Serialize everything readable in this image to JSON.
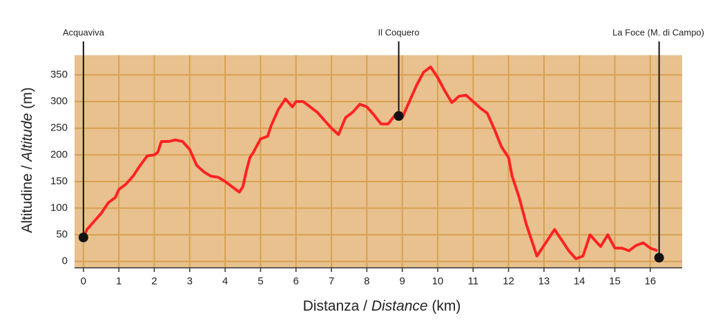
{
  "chart_data": {
    "type": "line",
    "x_label_parts": [
      "Distanza / ",
      "Distance",
      " (km)"
    ],
    "y_label_parts": [
      "Altitudine / ",
      "Altitude",
      " (m)"
    ],
    "xlim": [
      -0.25,
      16.9
    ],
    "ylim": [
      -12,
      387
    ],
    "xticks": [
      0,
      1,
      2,
      3,
      4,
      5,
      6,
      7,
      8,
      9,
      10,
      11,
      12,
      13,
      14,
      15,
      16
    ],
    "yticks": [
      0,
      50,
      100,
      150,
      200,
      250,
      300,
      350
    ],
    "grid": true,
    "background_color": "#e8c18e",
    "grid_color": "#d9a050",
    "x": [
      0,
      0.1,
      0.3,
      0.5,
      0.7,
      0.9,
      1.0,
      1.2,
      1.4,
      1.6,
      1.8,
      2.0,
      2.1,
      2.2,
      2.4,
      2.6,
      2.8,
      3.0,
      3.1,
      3.2,
      3.4,
      3.6,
      3.8,
      4.0,
      4.2,
      4.4,
      4.5,
      4.6,
      4.7,
      4.8,
      5.0,
      5.2,
      5.3,
      5.5,
      5.7,
      5.9,
      6.0,
      6.2,
      6.4,
      6.6,
      6.8,
      7.0,
      7.2,
      7.4,
      7.6,
      7.8,
      8.0,
      8.2,
      8.4,
      8.6,
      8.8,
      9.0,
      9.2,
      9.4,
      9.6,
      9.8,
      10.0,
      10.2,
      10.4,
      10.6,
      10.8,
      11.0,
      11.2,
      11.4,
      11.6,
      11.8,
      12.0,
      12.1,
      12.3,
      12.5,
      12.7,
      12.8,
      13.0,
      13.2,
      13.3,
      13.5,
      13.7,
      13.9,
      14.1,
      14.2,
      14.3,
      14.5,
      14.6,
      14.8,
      15.0,
      15.2,
      15.4,
      15.6,
      15.8,
      16.0,
      16.2
    ],
    "series": [
      {
        "color": "#ff2222",
        "values": [
          45,
          60,
          75,
          90,
          110,
          120,
          135,
          145,
          160,
          180,
          198,
          200,
          205,
          225,
          225,
          228,
          225,
          210,
          195,
          180,
          168,
          160,
          158,
          150,
          140,
          130,
          140,
          170,
          195,
          205,
          230,
          235,
          255,
          285,
          305,
          290,
          300,
          300,
          290,
          280,
          265,
          250,
          238,
          270,
          280,
          295,
          290,
          275,
          258,
          258,
          275,
          270,
          300,
          330,
          355,
          365,
          345,
          320,
          298,
          310,
          312,
          300,
          288,
          278,
          248,
          215,
          195,
          160,
          120,
          70,
          30,
          10,
          30,
          50,
          60,
          40,
          20,
          5,
          10,
          30,
          50,
          35,
          28,
          50,
          25,
          25,
          20,
          30,
          35,
          25,
          20
        ]
      }
    ],
    "annotations": [
      {
        "text": "Acquaviva",
        "x": 0,
        "y": 45
      },
      {
        "text": "Il Coquero",
        "x": 8.9,
        "y": 273
      },
      {
        "text": "La Foce (M. di Campo)",
        "x": 16.25,
        "y": 7
      }
    ]
  }
}
